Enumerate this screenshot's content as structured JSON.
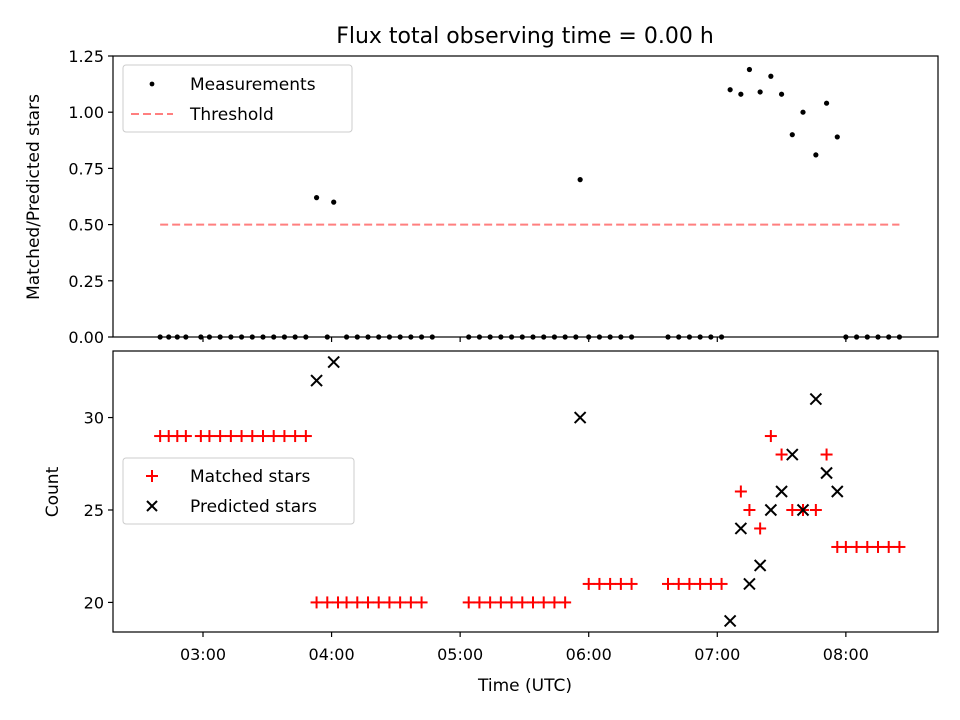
{
  "title": "Flux total observing time = 0.00 h",
  "colors": {
    "measurements": "#000000",
    "threshold": "#ff7f7f",
    "matched": "#ff0000",
    "predicted": "#000000"
  },
  "chart_data": [
    {
      "type": "scatter",
      "panel": "top",
      "title": "Flux total observing time = 0.00 h",
      "ylabel": "Matched/Predicted stars",
      "xlabel": "",
      "xlim": [
        "02:18",
        "08:43"
      ],
      "ylim": [
        0,
        1.25
      ],
      "yticks": [
        "0.00",
        "0.25",
        "0.50",
        "0.75",
        "1.00",
        "1.25"
      ],
      "xticks": [
        "03:00",
        "04:00",
        "05:00",
        "06:00",
        "07:00",
        "08:00"
      ],
      "legend_position": "top-left",
      "series": [
        {
          "name": "Measurements",
          "marker": "dot",
          "points": [
            [
              "02:40",
              0
            ],
            [
              "02:44",
              0
            ],
            [
              "02:48",
              0
            ],
            [
              "02:52",
              0
            ],
            [
              "02:59",
              0
            ],
            [
              "03:03",
              0
            ],
            [
              "03:08",
              0
            ],
            [
              "03:13",
              0
            ],
            [
              "03:18",
              0
            ],
            [
              "03:23",
              0
            ],
            [
              "03:28",
              0
            ],
            [
              "03:33",
              0
            ],
            [
              "03:38",
              0
            ],
            [
              "03:43",
              0
            ],
            [
              "03:48",
              0
            ],
            [
              "03:53",
              0.62
            ],
            [
              "03:58",
              0
            ],
            [
              "04:01",
              0.6
            ],
            [
              "04:07",
              0
            ],
            [
              "04:12",
              0
            ],
            [
              "04:17",
              0
            ],
            [
              "04:22",
              0
            ],
            [
              "04:27",
              0
            ],
            [
              "04:32",
              0
            ],
            [
              "04:37",
              0
            ],
            [
              "04:42",
              0
            ],
            [
              "04:47",
              0
            ],
            [
              "05:04",
              0
            ],
            [
              "05:09",
              0
            ],
            [
              "05:14",
              0
            ],
            [
              "05:19",
              0
            ],
            [
              "05:24",
              0
            ],
            [
              "05:29",
              0
            ],
            [
              "05:34",
              0
            ],
            [
              "05:39",
              0
            ],
            [
              "05:44",
              0
            ],
            [
              "05:49",
              0
            ],
            [
              "05:54",
              0
            ],
            [
              "05:56",
              0.7
            ],
            [
              "06:00",
              0
            ],
            [
              "06:05",
              0
            ],
            [
              "06:10",
              0
            ],
            [
              "06:15",
              0
            ],
            [
              "06:20",
              0
            ],
            [
              "06:37",
              0
            ],
            [
              "06:42",
              0
            ],
            [
              "06:47",
              0
            ],
            [
              "06:52",
              0
            ],
            [
              "06:57",
              0
            ],
            [
              "07:02",
              0
            ],
            [
              "07:06",
              1.1
            ],
            [
              "07:11",
              1.08
            ],
            [
              "07:15",
              1.19
            ],
            [
              "07:20",
              1.09
            ],
            [
              "07:25",
              1.16
            ],
            [
              "07:30",
              1.08
            ],
            [
              "07:35",
              0.9
            ],
            [
              "07:40",
              1.0
            ],
            [
              "07:46",
              0.81
            ],
            [
              "07:51",
              1.04
            ],
            [
              "07:56",
              0.89
            ],
            [
              "08:00",
              0
            ],
            [
              "08:05",
              0
            ],
            [
              "08:10",
              0
            ],
            [
              "08:15",
              0
            ],
            [
              "08:20",
              0
            ],
            [
              "08:25",
              0
            ]
          ]
        },
        {
          "name": "Threshold",
          "style": "dashed",
          "points": [
            [
              "02:40",
              0.5
            ],
            [
              "08:25",
              0.5
            ]
          ]
        }
      ]
    },
    {
      "type": "scatter",
      "panel": "bottom",
      "ylabel": "Count",
      "xlabel": "Time (UTC)",
      "xlim": [
        "02:18",
        "08:43"
      ],
      "ylim": [
        18.4,
        33.6
      ],
      "yticks": [
        "20",
        "25",
        "30"
      ],
      "xticks": [
        "03:00",
        "04:00",
        "05:00",
        "06:00",
        "07:00",
        "08:00"
      ],
      "legend_position": "center-left",
      "series": [
        {
          "name": "Matched stars",
          "marker": "plus",
          "points": [
            [
              "02:40",
              29
            ],
            [
              "02:44",
              29
            ],
            [
              "02:48",
              29
            ],
            [
              "02:52",
              29
            ],
            [
              "02:59",
              29
            ],
            [
              "03:03",
              29
            ],
            [
              "03:08",
              29
            ],
            [
              "03:13",
              29
            ],
            [
              "03:18",
              29
            ],
            [
              "03:23",
              29
            ],
            [
              "03:28",
              29
            ],
            [
              "03:33",
              29
            ],
            [
              "03:38",
              29
            ],
            [
              "03:43",
              29
            ],
            [
              "03:48",
              29
            ],
            [
              "03:53",
              20
            ],
            [
              "03:58",
              20
            ],
            [
              "04:03",
              20
            ],
            [
              "04:07",
              20
            ],
            [
              "04:12",
              20
            ],
            [
              "04:17",
              20
            ],
            [
              "04:22",
              20
            ],
            [
              "04:27",
              20
            ],
            [
              "04:32",
              20
            ],
            [
              "04:37",
              20
            ],
            [
              "04:42",
              20
            ],
            [
              "05:04",
              20
            ],
            [
              "05:09",
              20
            ],
            [
              "05:14",
              20
            ],
            [
              "05:19",
              20
            ],
            [
              "05:24",
              20
            ],
            [
              "05:29",
              20
            ],
            [
              "05:34",
              20
            ],
            [
              "05:39",
              20
            ],
            [
              "05:44",
              20
            ],
            [
              "05:49",
              20
            ],
            [
              "06:00",
              21
            ],
            [
              "06:05",
              21
            ],
            [
              "06:10",
              21
            ],
            [
              "06:15",
              21
            ],
            [
              "06:20",
              21
            ],
            [
              "06:37",
              21
            ],
            [
              "06:42",
              21
            ],
            [
              "06:47",
              21
            ],
            [
              "06:52",
              21
            ],
            [
              "06:57",
              21
            ],
            [
              "07:02",
              21
            ],
            [
              "07:11",
              26
            ],
            [
              "07:15",
              25
            ],
            [
              "07:20",
              24
            ],
            [
              "07:25",
              29
            ],
            [
              "07:30",
              28
            ],
            [
              "07:35",
              25
            ],
            [
              "07:40",
              25
            ],
            [
              "07:46",
              25
            ],
            [
              "07:51",
              28
            ],
            [
              "07:56",
              23
            ],
            [
              "08:00",
              23
            ],
            [
              "08:05",
              23
            ],
            [
              "08:10",
              23
            ],
            [
              "08:15",
              23
            ],
            [
              "08:20",
              23
            ],
            [
              "08:25",
              23
            ]
          ]
        },
        {
          "name": "Predicted stars",
          "marker": "x",
          "points": [
            [
              "03:53",
              32
            ],
            [
              "04:01",
              33
            ],
            [
              "05:56",
              30
            ],
            [
              "07:06",
              19
            ],
            [
              "07:11",
              24
            ],
            [
              "07:15",
              21
            ],
            [
              "07:20",
              22
            ],
            [
              "07:25",
              25
            ],
            [
              "07:30",
              26
            ],
            [
              "07:35",
              28
            ],
            [
              "07:40",
              25
            ],
            [
              "07:46",
              31
            ],
            [
              "07:51",
              27
            ],
            [
              "07:56",
              26
            ]
          ]
        }
      ]
    }
  ]
}
